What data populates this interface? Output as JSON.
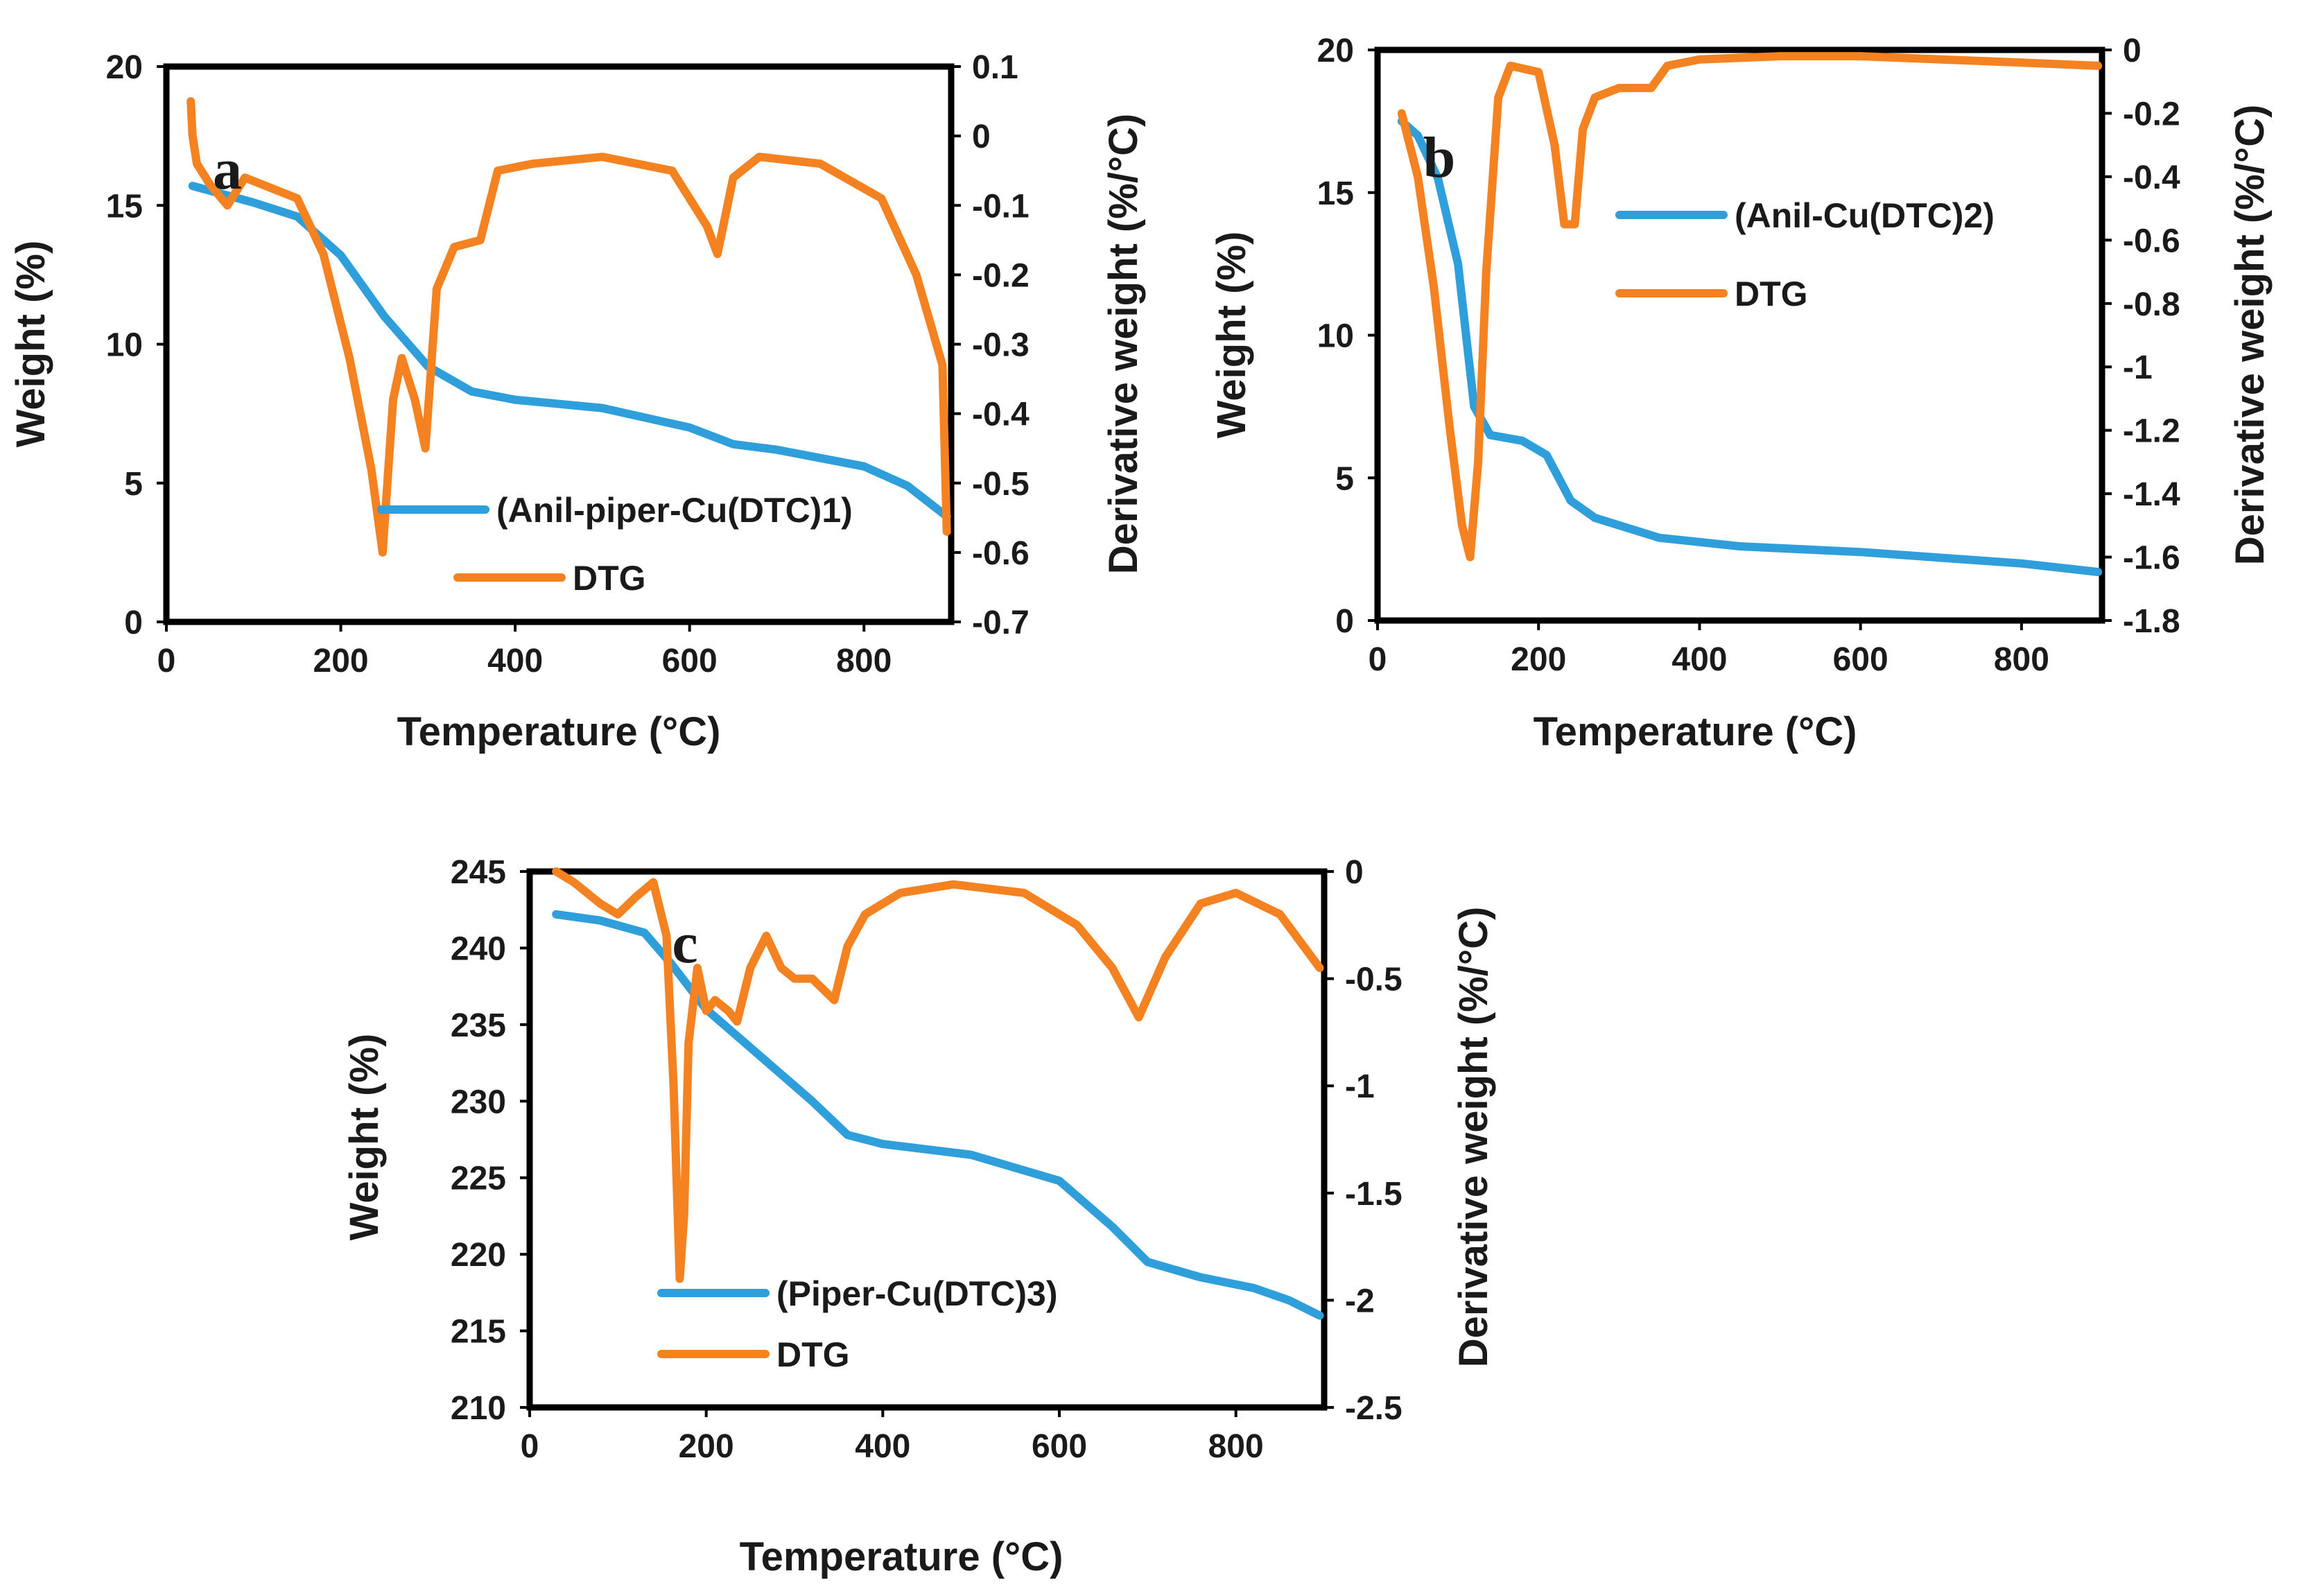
{
  "colors": {
    "weight": "#2f9fdb",
    "dtg": "#f58220",
    "axis": "#000000",
    "text": "#1a1a1a"
  },
  "chart_data": [
    {
      "type": "line",
      "panel_label": "a",
      "xlabel": "Temperature (°C)",
      "ylabel_left": "Weight (%)",
      "ylabel_right": "Derivative weight (%/°C)",
      "xlim": [
        0,
        900
      ],
      "ylim_left": [
        0,
        20
      ],
      "ylim_right": [
        -0.7,
        0.1
      ],
      "x_ticks": [
        "0",
        "200",
        "400",
        "600",
        "800"
      ],
      "y_left_ticks": [
        "0",
        "5",
        "10",
        "15",
        "20"
      ],
      "y_right_ticks": [
        "-0.7",
        "-0.6",
        "-0.5",
        "-0.4",
        "-0.3",
        "-0.2",
        "-0.1",
        "0",
        "0.1"
      ],
      "legend_position": "bottom-center",
      "series": [
        {
          "name": "(Anil-piper-Cu(DTC)1)",
          "axis": "left",
          "color": "#2f9fdb",
          "x": [
            30,
            100,
            150,
            200,
            250,
            300,
            350,
            400,
            500,
            600,
            650,
            700,
            800,
            850,
            895
          ],
          "y": [
            15.7,
            15.1,
            14.6,
            13.2,
            11.0,
            9.2,
            8.3,
            8.0,
            7.7,
            7.0,
            6.4,
            6.2,
            5.6,
            4.9,
            3.8
          ]
        },
        {
          "name": "DTG",
          "axis": "right",
          "color": "#f58220",
          "x": [
            28,
            30,
            35,
            50,
            70,
            90,
            110,
            150,
            180,
            210,
            235,
            248,
            260,
            270,
            285,
            297,
            310,
            330,
            360,
            380,
            420,
            500,
            580,
            620,
            632,
            650,
            680,
            750,
            820,
            860,
            890,
            895
          ],
          "y": [
            0.05,
            0.0,
            -0.04,
            -0.07,
            -0.1,
            -0.06,
            -0.07,
            -0.09,
            -0.17,
            -0.32,
            -0.48,
            -0.6,
            -0.38,
            -0.32,
            -0.38,
            -0.45,
            -0.22,
            -0.16,
            -0.15,
            -0.05,
            -0.04,
            -0.03,
            -0.05,
            -0.13,
            -0.17,
            -0.06,
            -0.03,
            -0.04,
            -0.09,
            -0.2,
            -0.33,
            -0.57
          ]
        }
      ]
    },
    {
      "type": "line",
      "panel_label": "b",
      "xlabel": "Temperature (°C)",
      "ylabel_left": "Weight (%)",
      "ylabel_right": "Derivative weight (%/°C)",
      "xlim": [
        0,
        900
      ],
      "ylim_left": [
        0,
        20
      ],
      "ylim_right": [
        -1.8,
        0
      ],
      "x_ticks": [
        "0",
        "200",
        "400",
        "600",
        "800"
      ],
      "y_left_ticks": [
        "0",
        "5",
        "10",
        "15",
        "20"
      ],
      "y_right_ticks": [
        "-1.8",
        "-1.6",
        "-1.4",
        "-1.2",
        "-1",
        "-0.8",
        "-0.6",
        "-0.4",
        "-0.2",
        "0"
      ],
      "legend_position": "right",
      "series": [
        {
          "name": "(Anil-Cu(DTC)2)",
          "axis": "left",
          "color": "#2f9fdb",
          "x": [
            30,
            50,
            75,
            100,
            120,
            140,
            180,
            210,
            240,
            270,
            350,
            450,
            600,
            700,
            800,
            895
          ],
          "y": [
            17.5,
            17.0,
            15.5,
            12.5,
            7.5,
            6.5,
            6.3,
            5.8,
            4.2,
            3.6,
            2.9,
            2.6,
            2.4,
            2.2,
            2.0,
            1.7
          ]
        },
        {
          "name": "DTG",
          "axis": "right",
          "color": "#f58220",
          "x": [
            30,
            50,
            70,
            90,
            105,
            115,
            125,
            135,
            150,
            165,
            200,
            220,
            232,
            245,
            255,
            270,
            300,
            340,
            360,
            400,
            500,
            600,
            700,
            800,
            895
          ],
          "y": [
            -0.2,
            -0.4,
            -0.75,
            -1.2,
            -1.5,
            -1.6,
            -1.3,
            -0.7,
            -0.15,
            -0.05,
            -0.07,
            -0.3,
            -0.55,
            -0.55,
            -0.25,
            -0.15,
            -0.12,
            -0.12,
            -0.05,
            -0.03,
            -0.02,
            -0.02,
            -0.03,
            -0.04,
            -0.05
          ]
        }
      ]
    },
    {
      "type": "line",
      "panel_label": "c",
      "xlabel": "Temperature (°C)",
      "ylabel_left": "Weight (%)",
      "ylabel_right": "Derivative weight (%/°C)",
      "xlim": [
        0,
        900
      ],
      "ylim_left": [
        210,
        245
      ],
      "ylim_right": [
        -2.5,
        0
      ],
      "x_ticks": [
        "0",
        "200",
        "400",
        "600",
        "800"
      ],
      "y_left_ticks": [
        "210",
        "215",
        "220",
        "225",
        "230",
        "235",
        "240",
        "245"
      ],
      "y_right_ticks": [
        "-2.5",
        "-2",
        "-1.5",
        "-1",
        "-0.5",
        "0"
      ],
      "legend_position": "bottom-left",
      "series": [
        {
          "name": "(Piper-Cu(DTC)3)",
          "axis": "left",
          "color": "#2f9fdb",
          "x": [
            30,
            80,
            130,
            160,
            200,
            260,
            320,
            360,
            400,
            500,
            600,
            660,
            700,
            760,
            820,
            860,
            895
          ],
          "y": [
            242.2,
            241.8,
            241.0,
            239.0,
            236.0,
            233.0,
            230.0,
            227.8,
            227.2,
            226.5,
            224.8,
            221.8,
            219.5,
            218.5,
            217.8,
            217.0,
            216.0
          ]
        },
        {
          "name": "DTG",
          "axis": "right",
          "color": "#f58220",
          "x": [
            30,
            50,
            80,
            100,
            120,
            140,
            155,
            163,
            170,
            175,
            180,
            190,
            200,
            210,
            225,
            235,
            250,
            268,
            285,
            300,
            320,
            345,
            360,
            380,
            420,
            480,
            560,
            620,
            660,
            690,
            720,
            760,
            800,
            850,
            895
          ],
          "y": [
            0.0,
            -0.05,
            -0.15,
            -0.2,
            -0.12,
            -0.05,
            -0.3,
            -1.0,
            -1.9,
            -1.6,
            -0.8,
            -0.45,
            -0.65,
            -0.6,
            -0.65,
            -0.7,
            -0.45,
            -0.3,
            -0.45,
            -0.5,
            -0.5,
            -0.6,
            -0.35,
            -0.2,
            -0.1,
            -0.06,
            -0.1,
            -0.25,
            -0.45,
            -0.68,
            -0.4,
            -0.15,
            -0.1,
            -0.2,
            -0.45
          ]
        }
      ]
    }
  ]
}
